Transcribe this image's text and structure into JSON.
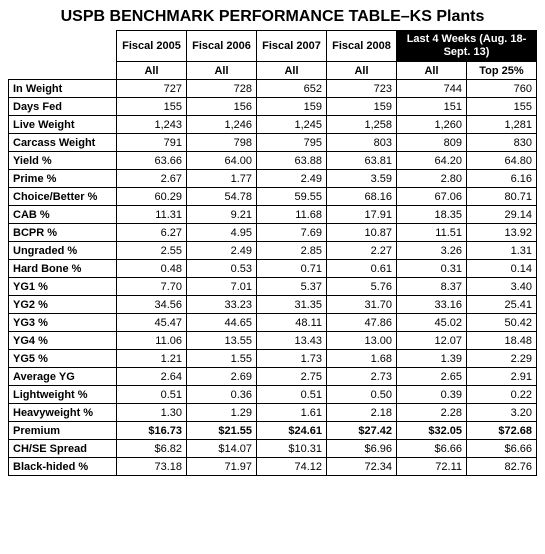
{
  "title": "USPB BENCHMARK PERFORMANCE TABLE–KS Plants",
  "headers": {
    "fiscal": [
      "Fiscal 2005",
      "Fiscal 2006",
      "Fiscal 2007",
      "Fiscal 2008"
    ],
    "last4": "Last 4 Weeks (Aug. 18-Sept. 13)",
    "sub": [
      "All",
      "All",
      "All",
      "All",
      "All",
      "Top 25%"
    ]
  },
  "rows": [
    {
      "label": "In Weight",
      "v": [
        "727",
        "728",
        "652",
        "723",
        "744",
        "760"
      ]
    },
    {
      "label": "Days Fed",
      "v": [
        "155",
        "156",
        "159",
        "159",
        "151",
        "155"
      ]
    },
    {
      "label": "Live Weight",
      "v": [
        "1,243",
        "1,246",
        "1,245",
        "1,258",
        "1,260",
        "1,281"
      ]
    },
    {
      "label": "Carcass Weight",
      "v": [
        "791",
        "798",
        "795",
        "803",
        "809",
        "830"
      ]
    },
    {
      "label": "Yield %",
      "v": [
        "63.66",
        "64.00",
        "63.88",
        "63.81",
        "64.20",
        "64.80"
      ]
    },
    {
      "label": "Prime %",
      "v": [
        "2.67",
        "1.77",
        "2.49",
        "3.59",
        "2.80",
        "6.16"
      ]
    },
    {
      "label": "Choice/Better %",
      "v": [
        "60.29",
        "54.78",
        "59.55",
        "68.16",
        "67.06",
        "80.71"
      ]
    },
    {
      "label": "CAB %",
      "v": [
        "11.31",
        "9.21",
        "11.68",
        "17.91",
        "18.35",
        "29.14"
      ]
    },
    {
      "label": "BCPR %",
      "v": [
        "6.27",
        "4.95",
        "7.69",
        "10.87",
        "11.51",
        "13.92"
      ]
    },
    {
      "label": "Ungraded %",
      "v": [
        "2.55",
        "2.49",
        "2.85",
        "2.27",
        "3.26",
        "1.31"
      ]
    },
    {
      "label": "Hard Bone %",
      "v": [
        "0.48",
        "0.53",
        "0.71",
        "0.61",
        "0.31",
        "0.14"
      ]
    },
    {
      "label": "YG1 %",
      "v": [
        "7.70",
        "7.01",
        "5.37",
        "5.76",
        "8.37",
        "3.40"
      ]
    },
    {
      "label": "YG2 %",
      "v": [
        "34.56",
        "33.23",
        "31.35",
        "31.70",
        "33.16",
        "25.41"
      ]
    },
    {
      "label": "YG3 %",
      "v": [
        "45.47",
        "44.65",
        "48.11",
        "47.86",
        "45.02",
        "50.42"
      ]
    },
    {
      "label": "YG4 %",
      "v": [
        "11.06",
        "13.55",
        "13.43",
        "13.00",
        "12.07",
        "18.48"
      ]
    },
    {
      "label": "YG5 %",
      "v": [
        "1.21",
        "1.55",
        "1.73",
        "1.68",
        "1.39",
        "2.29"
      ]
    },
    {
      "label": "Average YG",
      "v": [
        "2.64",
        "2.69",
        "2.75",
        "2.73",
        "2.65",
        "2.91"
      ]
    },
    {
      "label": "Lightweight %",
      "v": [
        "0.51",
        "0.36",
        "0.51",
        "0.50",
        "0.39",
        "0.22"
      ]
    },
    {
      "label": "Heavyweight %",
      "v": [
        "1.30",
        "1.29",
        "1.61",
        "2.18",
        "2.28",
        "3.20"
      ]
    },
    {
      "label": "Premium",
      "v": [
        "$16.73",
        "$21.55",
        "$24.61",
        "$27.42",
        "$32.05",
        "$72.68"
      ],
      "bold": true
    },
    {
      "label": "CH/SE Spread",
      "v": [
        "$6.82",
        "$14.07",
        "$10.31",
        "$6.96",
        "$6.66",
        "$6.66"
      ]
    },
    {
      "label": "Black-hided %",
      "v": [
        "73.18",
        "71.97",
        "74.12",
        "72.34",
        "72.11",
        "82.76"
      ]
    }
  ],
  "style": {
    "title_fontsize": 16,
    "cell_fontsize": 11,
    "border_color": "#000000",
    "dark_bg": "#000000",
    "dark_fg": "#ffffff",
    "background": "#ffffff"
  }
}
